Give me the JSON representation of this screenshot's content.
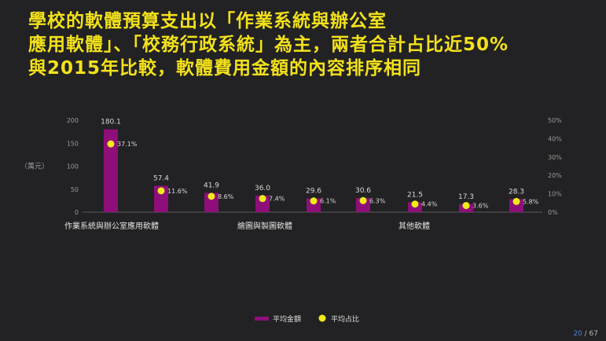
{
  "headline": {
    "line1": "學校的軟體預算支出以「作業系統與辦公室",
    "line2": "應用軟體」、「校務行政系統」為主，兩者合計占比近50%",
    "line3": "與2015年比較，軟體費用金額的內容排序相同"
  },
  "page_number": {
    "current": "20",
    "separator": " / ",
    "total": "67"
  },
  "colors": {
    "bar": "#8e0f7a",
    "dot": "#f2ea1a",
    "title": "#f2e11b",
    "background": "#222224"
  },
  "chart_data": {
    "type": "bar",
    "title": "",
    "ylabel": "（萬元）",
    "ylim": [
      0,
      200
    ],
    "y_ticks": [
      "0",
      "50",
      "100",
      "150",
      "200"
    ],
    "y2lim": [
      0,
      50
    ],
    "y2_ticks": [
      "0%",
      "10%",
      "20%",
      "30%",
      "40%",
      "50%"
    ],
    "group_labels": [
      "作業系統與辦公室應用軟體",
      "繪圖與製圖軟體",
      "其他軟體"
    ],
    "series": [
      {
        "name": "平均金額",
        "axis": "left",
        "values": [
          180.1,
          57.4,
          41.9,
          36.0,
          29.6,
          30.6,
          21.5,
          17.3,
          28.3
        ],
        "labels": [
          "180.1",
          "57.4",
          "41.9",
          "36.0",
          "29.6",
          "30.6",
          "21.5",
          "17.3",
          "28.3"
        ]
      },
      {
        "name": "平均占比",
        "axis": "right",
        "values": [
          37.1,
          11.6,
          8.6,
          7.4,
          6.1,
          6.3,
          4.4,
          3.6,
          5.8
        ],
        "labels": [
          "37.1%",
          "11.6%",
          "8.6%",
          "7.4%",
          "6.1%",
          "6.3%",
          "4.4%",
          "3.6%",
          "5.8%"
        ]
      }
    ],
    "legend": {
      "placement": "bottom-center"
    }
  }
}
